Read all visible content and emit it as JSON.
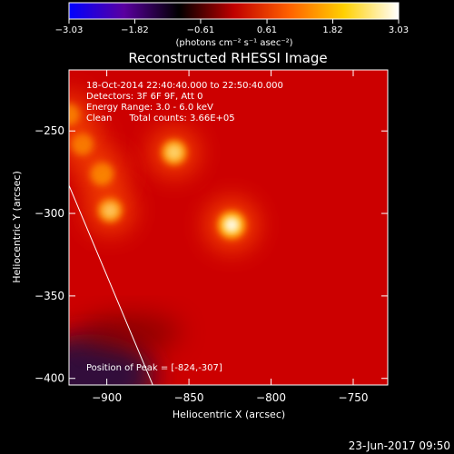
{
  "chart_data": {
    "type": "heatmap",
    "title": "Reconstructed RHESSI Image",
    "colorbar": {
      "ticks": [
        "-3.03",
        "-1.82",
        "-0.61",
        "0.61",
        "1.82",
        "3.03"
      ],
      "range": [
        -3.03,
        3.03
      ],
      "units_label": "(photons cm⁻² s⁻¹ asec⁻²)",
      "colormap": [
        "#0000ff",
        "#5a00a0",
        "#000000",
        "#c00000",
        "#ff6000",
        "#ffd000",
        "#ffffff"
      ]
    },
    "xlabel": "Heliocentric X (arcsec)",
    "ylabel": "Heliocentric Y (arcsec)",
    "xlim": [
      -923,
      -729
    ],
    "ylim": [
      -404,
      -213
    ],
    "xticks": [
      -900,
      -850,
      -800,
      -750
    ],
    "yticks": [
      -400,
      -350,
      -300,
      -250
    ],
    "xtick_labels": [
      "−900",
      "−850",
      "−800",
      "−750"
    ],
    "ytick_labels": [
      "−400",
      "−350",
      "−300",
      "−250"
    ],
    "info_lines": [
      "18-Oct-2014 22:40:40.000 to 22:50:40.000",
      "Detectors: 3F 6F 9F, Att 0",
      "Energy Range: 3.0 - 6.0 keV",
      "Clean      Total counts: 3.66E+05"
    ],
    "peak_label": "Position of Peak = [-824,-307]",
    "peak_position": [
      -824,
      -307
    ],
    "sources": [
      {
        "x": -824,
        "y": -307,
        "intensity": 3.03
      },
      {
        "x": -859,
        "y": -263,
        "intensity": 2.4
      },
      {
        "x": -898,
        "y": -298,
        "intensity": 2.2
      },
      {
        "x": -903,
        "y": -276,
        "intensity": 1.9
      },
      {
        "x": -915,
        "y": -258,
        "intensity": 1.6
      },
      {
        "x": -923,
        "y": -240,
        "intensity": 1.5
      }
    ],
    "background_intensity": 0.9,
    "limb_line": [
      [
        -923,
        -283
      ],
      [
        -872,
        -404
      ]
    ],
    "colors": {
      "background": "#000000",
      "foreground": "#ffffff",
      "field": "#cc0000",
      "hot": "#ff5500",
      "faint": "#30103a"
    }
  },
  "footer": {
    "timestamp": "23-Jun-2017 09:50"
  }
}
